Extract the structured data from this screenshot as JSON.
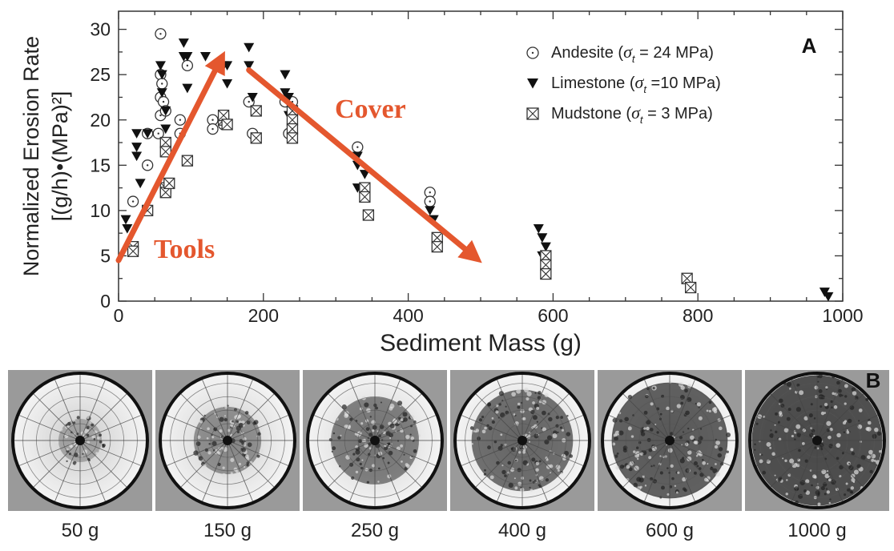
{
  "chart_data": {
    "type": "scatter",
    "xlabel": "Sediment Mass (g)",
    "ylabel_line1": "Normalized Erosion Rate",
    "ylabel_line2": "[(g/h)•(MPa)²]",
    "xlim": [
      0,
      1000
    ],
    "ylim": [
      0,
      32
    ],
    "xticks": [
      0,
      200,
      400,
      600,
      800,
      1000
    ],
    "yticks": [
      0,
      5,
      10,
      15,
      20,
      25,
      30
    ],
    "grid": false,
    "legend_placement": "top-right",
    "panel_label": "A",
    "series": [
      {
        "name": "Andesite (σt = 24 MPa)",
        "legend_main": "Andesite (",
        "legend_sigma": "σ",
        "legend_sub": "t",
        "legend_tail": " = 24 MPa)",
        "marker": "circle",
        "points": [
          [
            20,
            11
          ],
          [
            40,
            18.5
          ],
          [
            40,
            15
          ],
          [
            55,
            18.5
          ],
          [
            58,
            29.5
          ],
          [
            58,
            25
          ],
          [
            58,
            22.5
          ],
          [
            58,
            20.5
          ],
          [
            60,
            24
          ],
          [
            62,
            22
          ],
          [
            65,
            21
          ],
          [
            85,
            18.5
          ],
          [
            85,
            20
          ],
          [
            95,
            26
          ],
          [
            130,
            20
          ],
          [
            130,
            19
          ],
          [
            145,
            19.5
          ],
          [
            180,
            22
          ],
          [
            185,
            18.5
          ],
          [
            190,
            18
          ],
          [
            230,
            22
          ],
          [
            235,
            18.5
          ],
          [
            240,
            22
          ],
          [
            330,
            17
          ],
          [
            430,
            12
          ],
          [
            430,
            11
          ]
        ]
      },
      {
        "name": "Limestone (σt =10 MPa)",
        "legend_main": "Limestone (",
        "legend_sigma": "σ",
        "legend_sub": "t",
        "legend_tail": " =10 MPa)",
        "marker": "triangle-down",
        "points": [
          [
            10,
            9
          ],
          [
            12,
            8
          ],
          [
            25,
            18.5
          ],
          [
            25,
            16
          ],
          [
            25,
            17
          ],
          [
            30,
            13
          ],
          [
            40,
            18.5
          ],
          [
            58,
            26
          ],
          [
            60,
            25
          ],
          [
            60,
            23
          ],
          [
            65,
            21
          ],
          [
            65,
            19
          ],
          [
            90,
            28.5
          ],
          [
            90,
            27
          ],
          [
            95,
            27
          ],
          [
            95,
            23.5
          ],
          [
            120,
            27
          ],
          [
            145,
            26
          ],
          [
            150,
            26
          ],
          [
            150,
            24
          ],
          [
            180,
            28
          ],
          [
            180,
            26
          ],
          [
            185,
            22.5
          ],
          [
            230,
            25
          ],
          [
            230,
            23
          ],
          [
            235,
            22.5
          ],
          [
            235,
            20.5
          ],
          [
            330,
            16
          ],
          [
            330,
            15
          ],
          [
            330,
            12.5
          ],
          [
            340,
            14
          ],
          [
            430,
            10
          ],
          [
            435,
            9
          ],
          [
            580,
            8
          ],
          [
            585,
            7
          ],
          [
            585,
            5
          ],
          [
            590,
            6
          ],
          [
            975,
            1
          ],
          [
            980,
            0.5
          ]
        ]
      },
      {
        "name": "Mudstone (σt = 3 MPa)",
        "legend_main": "Mudstone (",
        "legend_sigma": "σ",
        "legend_sub": "t",
        "legend_tail": " = 3 MPa)",
        "marker": "box-x",
        "points": [
          [
            20,
            6
          ],
          [
            20,
            5.5
          ],
          [
            40,
            10
          ],
          [
            65,
            17.5
          ],
          [
            65,
            16.5
          ],
          [
            65,
            12.5
          ],
          [
            65,
            12
          ],
          [
            70,
            13
          ],
          [
            95,
            15.5
          ],
          [
            145,
            20
          ],
          [
            145,
            20.5
          ],
          [
            150,
            19.5
          ],
          [
            190,
            21
          ],
          [
            190,
            18
          ],
          [
            240,
            21
          ],
          [
            240,
            20
          ],
          [
            240,
            19
          ],
          [
            240,
            18
          ],
          [
            340,
            12.5
          ],
          [
            340,
            11.5
          ],
          [
            345,
            9.5
          ],
          [
            440,
            7
          ],
          [
            440,
            6
          ],
          [
            590,
            5
          ],
          [
            590,
            4
          ],
          [
            590,
            3
          ],
          [
            785,
            2.5
          ],
          [
            790,
            1.5
          ]
        ]
      }
    ],
    "arrows": [
      {
        "label": "Tools",
        "from": [
          0,
          4.5
        ],
        "to": [
          140,
          26.5
        ]
      },
      {
        "label": "Cover",
        "from": [
          180,
          25.5
        ],
        "to": [
          490,
          5
        ]
      }
    ]
  },
  "panel_b": {
    "panel_label": "B",
    "plates": [
      {
        "label": "50 g",
        "coverage": 0.1
      },
      {
        "label": "150 g",
        "coverage": 0.35
      },
      {
        "label": "250 g",
        "coverage": 0.55
      },
      {
        "label": "400 g",
        "coverage": 0.7
      },
      {
        "label": "600 g",
        "coverage": 0.85
      },
      {
        "label": "1000 g",
        "coverage": 1.0
      }
    ]
  }
}
